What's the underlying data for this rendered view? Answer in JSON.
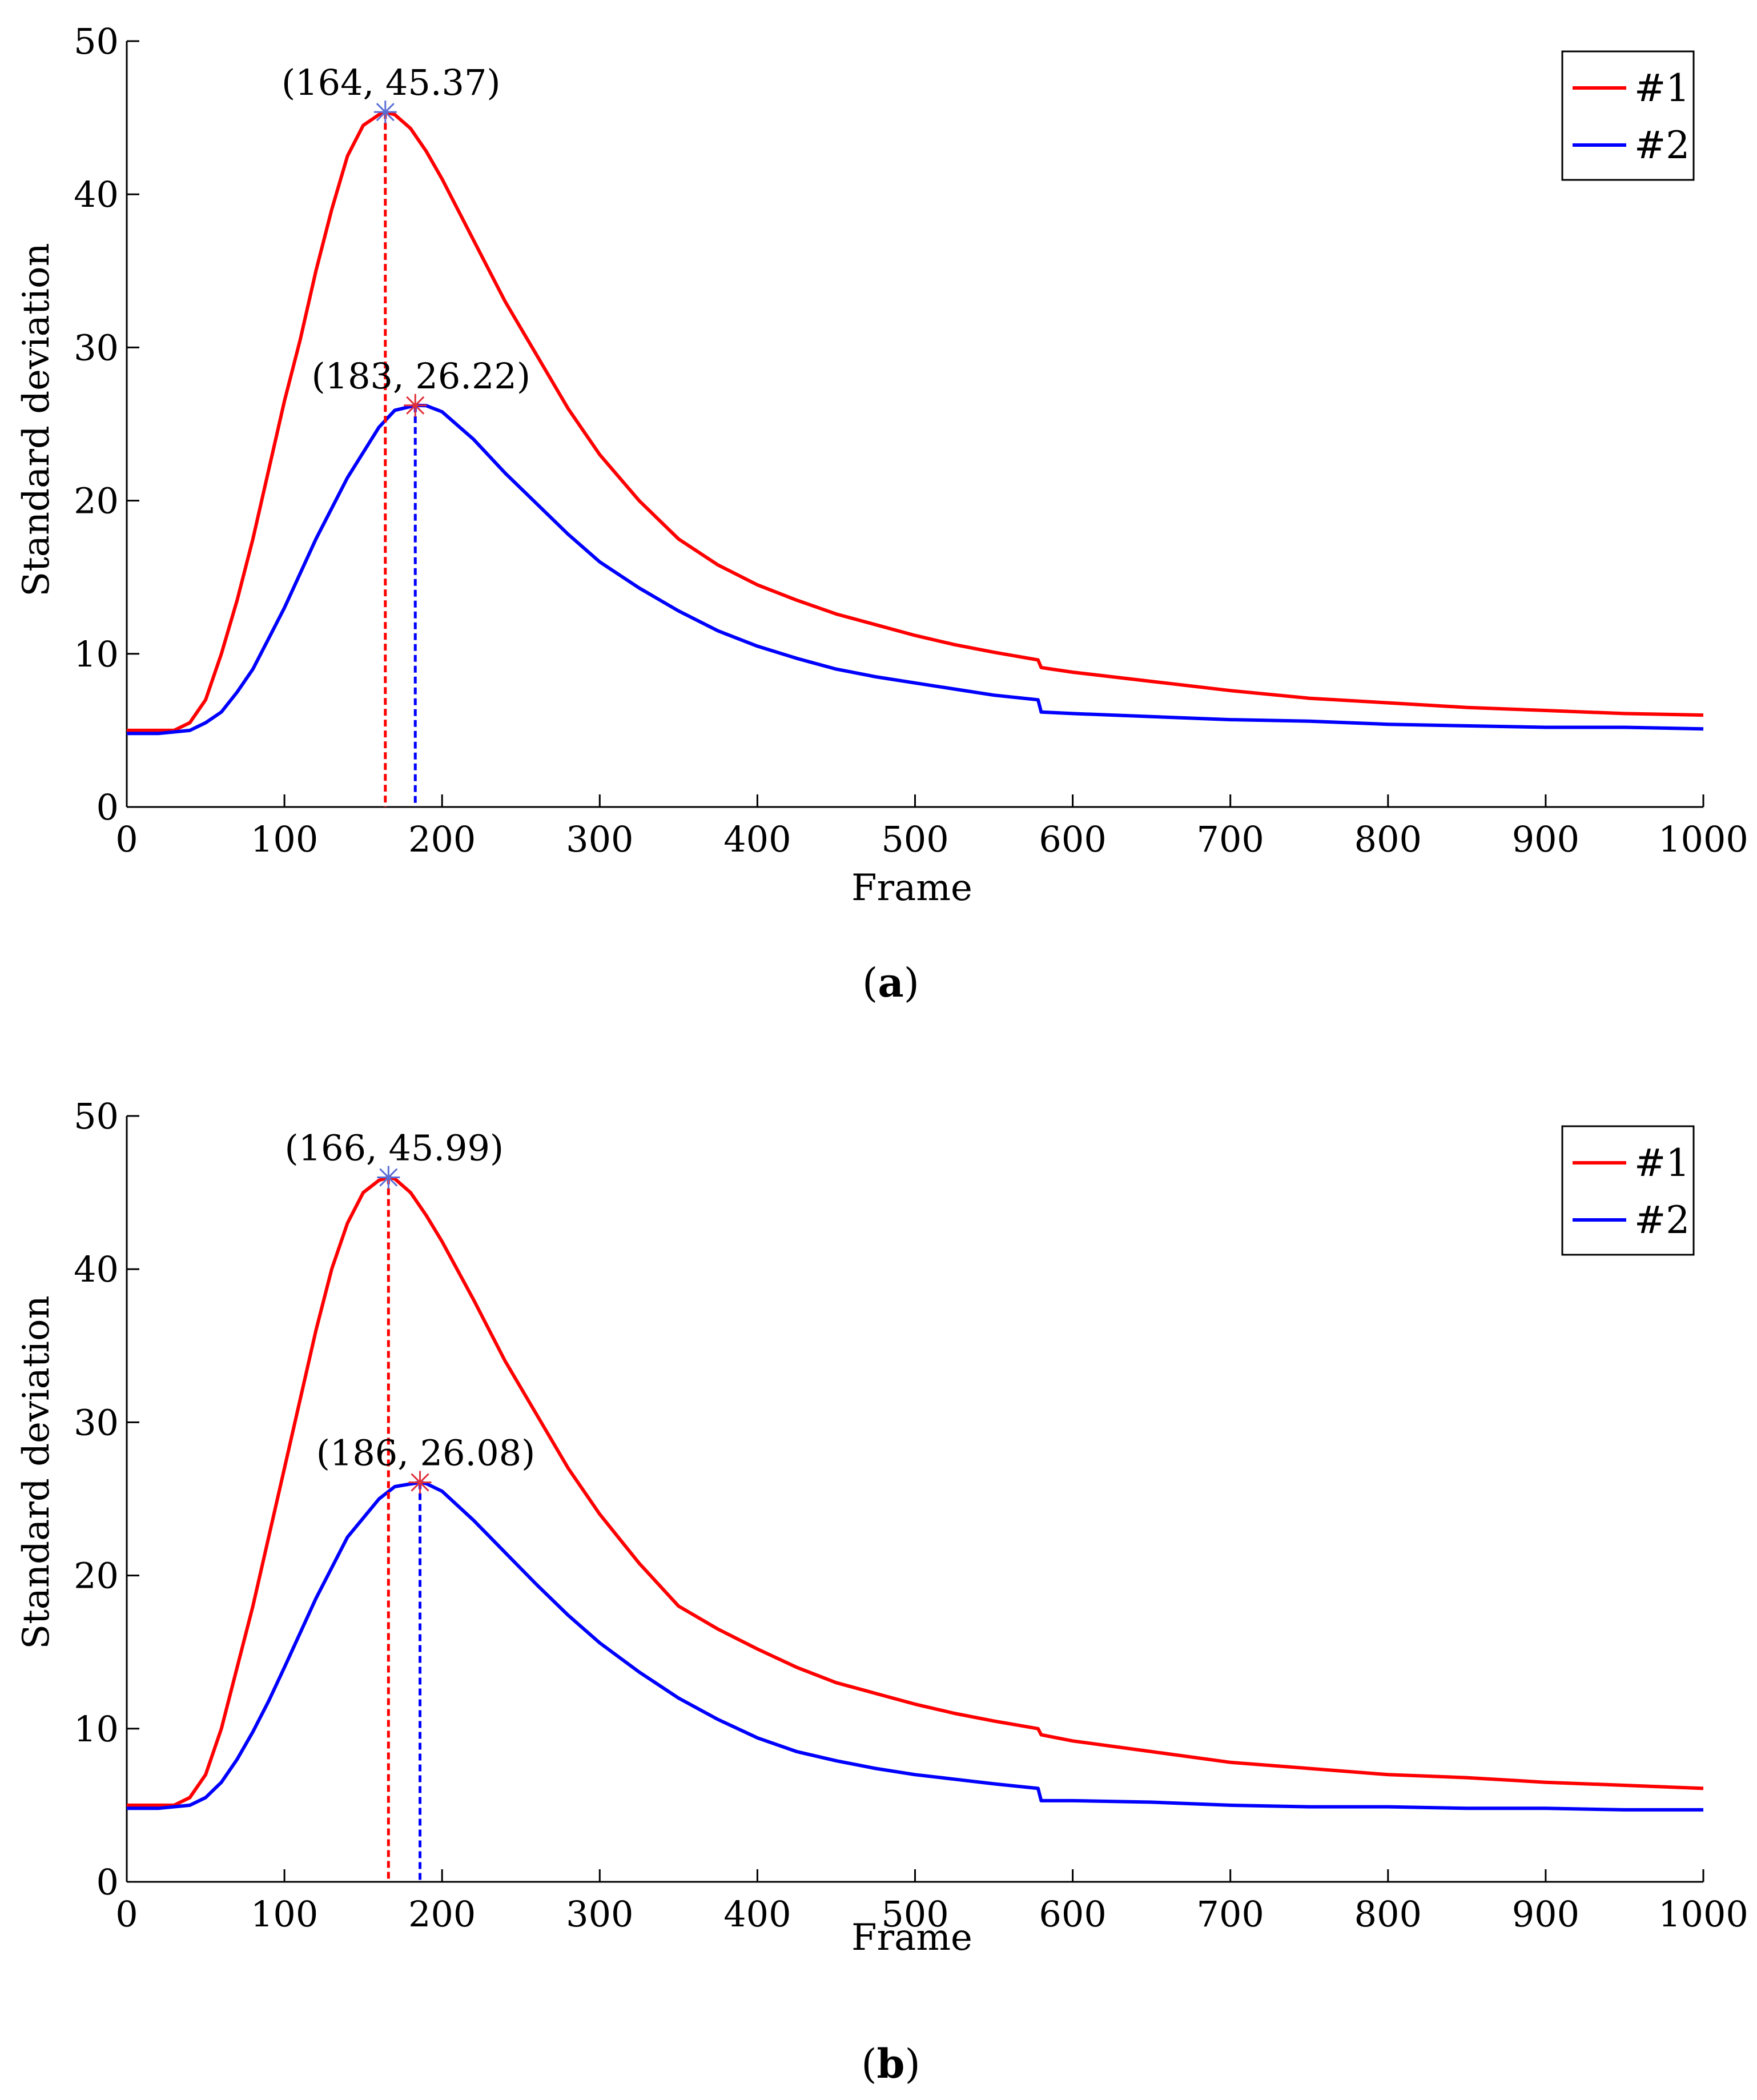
{
  "colors": {
    "series1": "#ff0000",
    "series2": "#0000ff",
    "axis": "#000000",
    "peak_marker": "#5a6fd6",
    "peak_marker_2": "#e0303a"
  },
  "chart_data": [
    {
      "type": "line",
      "caption": "a",
      "xlabel": "Frame",
      "ylabel": "Standard deviation",
      "xlim": [
        0,
        1000
      ],
      "ylim": [
        0,
        50
      ],
      "xticks": [
        0,
        100,
        200,
        300,
        400,
        500,
        600,
        700,
        800,
        900,
        1000
      ],
      "yticks": [
        0,
        10,
        20,
        30,
        40,
        50
      ],
      "grid": false,
      "legend_position": "top-right",
      "series": [
        {
          "name": "#1",
          "color": "#ff0000",
          "x": [
            0,
            20,
            30,
            40,
            50,
            60,
            70,
            80,
            90,
            100,
            110,
            120,
            130,
            140,
            150,
            160,
            164,
            170,
            180,
            190,
            200,
            220,
            240,
            260,
            280,
            300,
            325,
            350,
            375,
            400,
            425,
            450,
            475,
            500,
            525,
            550,
            578,
            580,
            600,
            650,
            700,
            750,
            800,
            850,
            900,
            950,
            1000
          ],
          "values": [
            5.0,
            5.0,
            5.0,
            5.5,
            7.0,
            10.0,
            13.5,
            17.5,
            22.0,
            26.5,
            30.5,
            35.0,
            39.0,
            42.5,
            44.5,
            45.2,
            45.37,
            45.2,
            44.3,
            42.8,
            41.0,
            37.0,
            33.0,
            29.5,
            26.0,
            23.0,
            20.0,
            17.5,
            15.8,
            14.5,
            13.5,
            12.6,
            11.9,
            11.2,
            10.6,
            10.1,
            9.6,
            9.1,
            8.8,
            8.2,
            7.6,
            7.1,
            6.8,
            6.5,
            6.3,
            6.1,
            6.0
          ]
        },
        {
          "name": "#2",
          "color": "#0000ff",
          "x": [
            0,
            20,
            40,
            50,
            60,
            70,
            80,
            90,
            100,
            120,
            140,
            160,
            170,
            183,
            190,
            200,
            220,
            240,
            260,
            280,
            300,
            325,
            350,
            375,
            400,
            425,
            450,
            475,
            500,
            525,
            550,
            578,
            580,
            600,
            650,
            700,
            750,
            800,
            850,
            900,
            950,
            1000
          ],
          "values": [
            4.8,
            4.8,
            5.0,
            5.5,
            6.2,
            7.5,
            9.0,
            11.0,
            13.0,
            17.5,
            21.5,
            24.8,
            25.9,
            26.22,
            26.2,
            25.8,
            24.0,
            21.8,
            19.8,
            17.8,
            16.0,
            14.3,
            12.8,
            11.5,
            10.5,
            9.7,
            9.0,
            8.5,
            8.1,
            7.7,
            7.3,
            7.0,
            6.2,
            6.1,
            5.9,
            5.7,
            5.6,
            5.4,
            5.3,
            5.2,
            5.2,
            5.1
          ]
        }
      ],
      "annotations": [
        {
          "label": "(164, 45.37)",
          "x": 164,
          "y": 45.37,
          "series": "#1"
        },
        {
          "label": "(183, 26.22)",
          "x": 183,
          "y": 26.22,
          "series": "#2"
        }
      ]
    },
    {
      "type": "line",
      "caption": "b",
      "xlabel": "Frame",
      "ylabel": "Standard deviation",
      "xlim": [
        0,
        1000
      ],
      "ylim": [
        0,
        50
      ],
      "xticks": [
        0,
        100,
        200,
        300,
        400,
        500,
        600,
        700,
        800,
        900,
        1000
      ],
      "yticks": [
        0,
        10,
        20,
        30,
        40,
        50
      ],
      "grid": false,
      "legend_position": "top-right",
      "series": [
        {
          "name": "#1",
          "color": "#ff0000",
          "x": [
            0,
            20,
            30,
            40,
            50,
            60,
            70,
            80,
            90,
            100,
            110,
            120,
            130,
            140,
            150,
            160,
            166,
            170,
            180,
            190,
            200,
            220,
            240,
            260,
            280,
            300,
            325,
            350,
            375,
            400,
            425,
            450,
            475,
            500,
            525,
            550,
            578,
            580,
            600,
            650,
            700,
            750,
            800,
            850,
            900,
            950,
            1000
          ],
          "values": [
            5.0,
            5.0,
            5.0,
            5.5,
            7.0,
            10.0,
            14.0,
            18.0,
            22.5,
            27.0,
            31.5,
            36.0,
            40.0,
            43.0,
            45.0,
            45.8,
            45.99,
            45.9,
            45.0,
            43.5,
            41.8,
            38.0,
            34.0,
            30.5,
            27.0,
            24.0,
            20.8,
            18.0,
            16.5,
            15.2,
            14.0,
            13.0,
            12.3,
            11.6,
            11.0,
            10.5,
            10.0,
            9.6,
            9.2,
            8.5,
            7.8,
            7.4,
            7.0,
            6.8,
            6.5,
            6.3,
            6.1
          ]
        },
        {
          "name": "#2",
          "color": "#0000ff",
          "x": [
            0,
            20,
            40,
            50,
            60,
            70,
            80,
            90,
            100,
            120,
            140,
            160,
            170,
            186,
            190,
            200,
            220,
            240,
            260,
            280,
            300,
            325,
            350,
            375,
            400,
            425,
            450,
            475,
            500,
            525,
            550,
            578,
            580,
            600,
            650,
            700,
            750,
            800,
            850,
            900,
            950,
            1000
          ],
          "values": [
            4.8,
            4.8,
            5.0,
            5.5,
            6.5,
            8.0,
            9.8,
            11.8,
            14.0,
            18.5,
            22.5,
            25.0,
            25.8,
            26.08,
            26.0,
            25.5,
            23.6,
            21.5,
            19.4,
            17.4,
            15.6,
            13.7,
            12.0,
            10.6,
            9.4,
            8.5,
            7.9,
            7.4,
            7.0,
            6.7,
            6.4,
            6.1,
            5.3,
            5.3,
            5.2,
            5.0,
            4.9,
            4.9,
            4.8,
            4.8,
            4.7,
            4.7
          ]
        }
      ],
      "annotations": [
        {
          "label": "(166, 45.99)",
          "x": 166,
          "y": 45.99,
          "series": "#1"
        },
        {
          "label": "(186, 26.08)",
          "x": 186,
          "y": 26.08,
          "series": "#2"
        }
      ]
    }
  ],
  "captions": {
    "a_prefix": "(",
    "a_letter": "a",
    "a_suffix": ")",
    "b_prefix": "(",
    "b_letter": "b",
    "b_suffix": ")"
  }
}
